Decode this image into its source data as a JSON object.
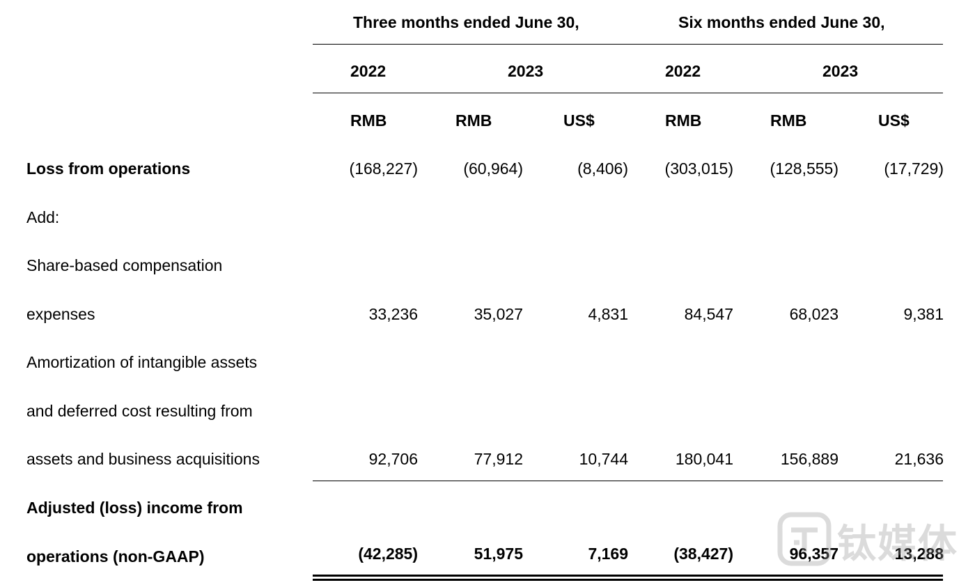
{
  "header": {
    "three_months": "Three months ended June 30,",
    "six_months": "Six months ended June 30,",
    "years": [
      "2022",
      "2023",
      "2022",
      "2023"
    ],
    "currencies": [
      "RMB",
      "RMB",
      "US$",
      "RMB",
      "RMB",
      "US$"
    ]
  },
  "rows": {
    "loss_from_operations": {
      "label": "Loss from operations",
      "values": [
        "(168,227)",
        "(60,964)",
        "(8,406)",
        "(303,015)",
        "(128,555)",
        "(17,729)"
      ]
    },
    "add": {
      "label": "Add:"
    },
    "share_based": {
      "label_line1": "Share-based compensation",
      "label_line2": "expenses",
      "values": [
        "33,236",
        "35,027",
        "4,831",
        "84,547",
        "68,023",
        "9,381"
      ]
    },
    "amortization": {
      "label_line1": "Amortization of intangible assets",
      "label_line2": "and deferred cost resulting from",
      "label_line3": "assets and business acquisitions",
      "values": [
        "92,706",
        "77,912",
        "10,744",
        "180,041",
        "156,889",
        "21,636"
      ]
    },
    "adjusted": {
      "label_line1": "Adjusted (loss) income from",
      "label_line2": "operations (non-GAAP)",
      "values": [
        "(42,285)",
        "51,975",
        "7,169",
        "(38,427)",
        "96,357",
        "13,288"
      ]
    }
  },
  "watermark": {
    "text": "钛媒体",
    "icon": "tmtpost-logo-icon",
    "color": "#9a9a9a"
  }
}
